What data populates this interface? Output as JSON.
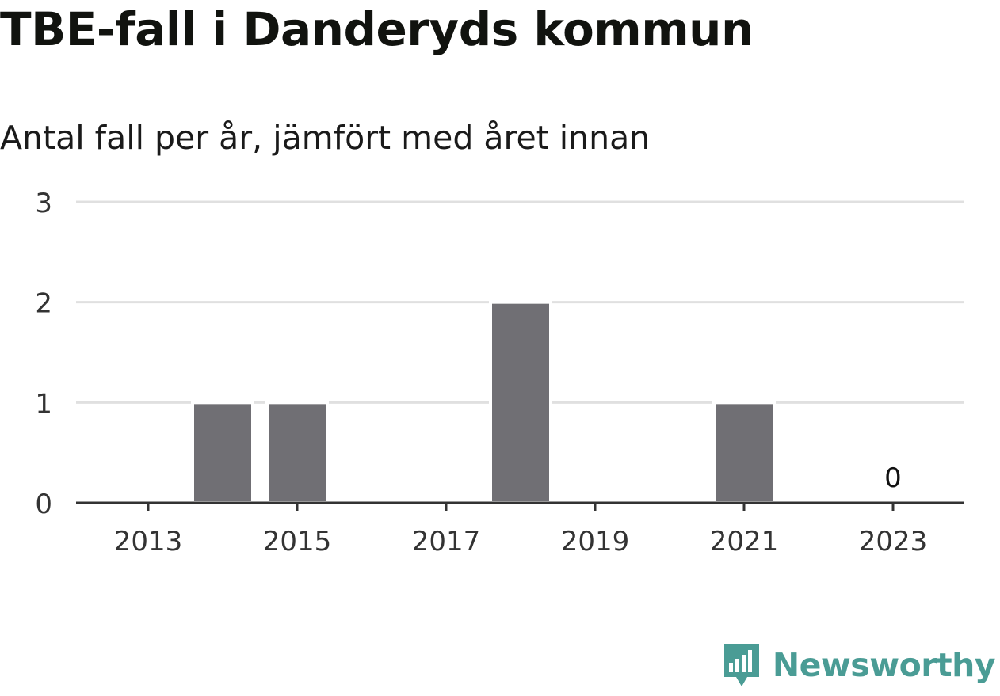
{
  "title": "TBE-fall i Danderyds kommun",
  "subtitle": "Antal fall per år, jämfört med året innan",
  "brand": {
    "name": "Newsworthy",
    "icon": "newsworthy-logo-icon",
    "color": "#4a9c95"
  },
  "chart_data": {
    "type": "bar",
    "title": "TBE-fall i Danderyds kommun",
    "subtitle": "Antal fall per år, jämfört med året innan",
    "xlabel": "",
    "ylabel": "",
    "categories": [
      "2013",
      "2014",
      "2015",
      "2016",
      "2017",
      "2018",
      "2019",
      "2020",
      "2021",
      "2022",
      "2023"
    ],
    "values": [
      0,
      1,
      1,
      0,
      0,
      2,
      0,
      0,
      1,
      0,
      0
    ],
    "xticks": [
      "2013",
      "2015",
      "2017",
      "2019",
      "2021",
      "2023"
    ],
    "yticks": [
      0,
      1,
      2,
      3
    ],
    "ylim": [
      0,
      3
    ],
    "grid": true,
    "bar_color": "#706f74",
    "grid_color": "#e0e0e0",
    "data_labels": [
      {
        "category": "2023",
        "text": "0"
      }
    ]
  }
}
